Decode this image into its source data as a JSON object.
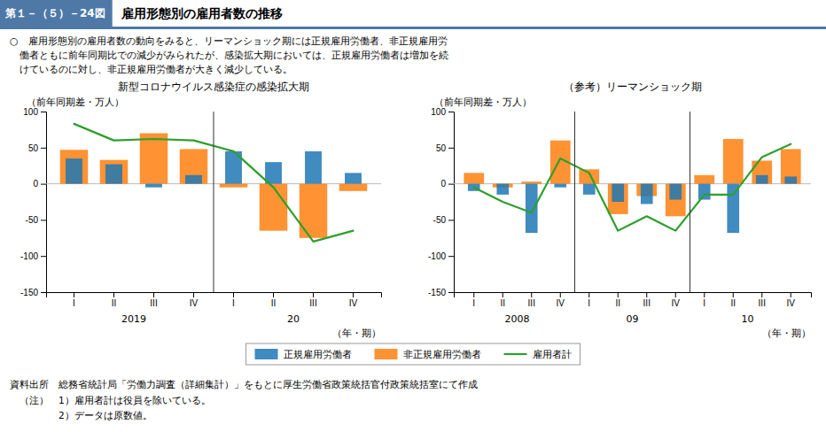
{
  "figure_label": "第１－（５）－24図",
  "title": "雇用形態別の雇用者数の推移",
  "text": [
    "○　雇用形態別の雇用者数の動向をみると、リーマンショック期には正規雇用労働者、非正規雇用労",
    "　働者ともに前年同期比での減少がみられたが、感染拡大期においては、正規雇用労働者は増加を続",
    "　けているのに対し、非正規雇用労働者が大きく減少している。"
  ],
  "source": "資料出所　総務省統計局「労働力調査（詳細集計）」をもとに厚生労働省政策統括官付政策統括室にて作成",
  "notes": [
    "　（注）　1）雇用者計は役員を除いている。",
    "　　　　　2）データは原数値。"
  ],
  "chart_data": [
    {
      "type": "bar",
      "title": "新型コロナウイルス感染症の感染拡大期",
      "ylabel": "（前年同期差・万人）",
      "xlabel": "（年・期）",
      "categories": [
        "I",
        "II",
        "III",
        "IV",
        "I",
        "II",
        "III",
        "IV"
      ],
      "year_labels": [
        "2019",
        "20"
      ],
      "series": [
        {
          "name": "正規雇用労働者",
          "type": "bar",
          "values": [
            35,
            27,
            -5,
            12,
            45,
            30,
            45,
            15
          ]
        },
        {
          "name": "非正規雇用労働者",
          "type": "bar",
          "values": [
            47,
            33,
            70,
            48,
            -5,
            -65,
            -75,
            -10
          ]
        },
        {
          "name": "雇用者計",
          "type": "line",
          "values": [
            83,
            60,
            62,
            60,
            45,
            -5,
            -80,
            -65
          ]
        }
      ],
      "ylim": [
        -150,
        100
      ],
      "yticks": [
        -150,
        -100,
        -50,
        0,
        50,
        100
      ],
      "grid": false,
      "legend": "bottom"
    },
    {
      "type": "bar",
      "title": "（参考）リーマンショック期",
      "ylabel": "（前年同期差・万人）",
      "xlabel": "（年・期）",
      "categories": [
        "I",
        "II",
        "III",
        "IV",
        "I",
        "II",
        "III",
        "IV",
        "I",
        "II",
        "III",
        "IV"
      ],
      "year_labels": [
        "2008",
        "09",
        "10"
      ],
      "series": [
        {
          "type": "bar",
          "values": [
            -10,
            -15,
            -68,
            -5,
            -15,
            -25,
            -28,
            -22,
            -22,
            -68,
            12,
            10
          ]
        },
        {
          "type": "bar",
          "values": [
            15,
            -5,
            3,
            60,
            20,
            -42,
            -17,
            -45,
            12,
            62,
            32,
            48
          ]
        },
        {
          "type": "line",
          "values": [
            -5,
            -25,
            -40,
            35,
            15,
            -65,
            -45,
            -65,
            -15,
            -15,
            37,
            55
          ]
        }
      ],
      "ylim": [
        -150,
        100
      ],
      "yticks": [
        -150,
        -100,
        -50,
        0,
        50,
        100
      ],
      "grid": false
    }
  ]
}
